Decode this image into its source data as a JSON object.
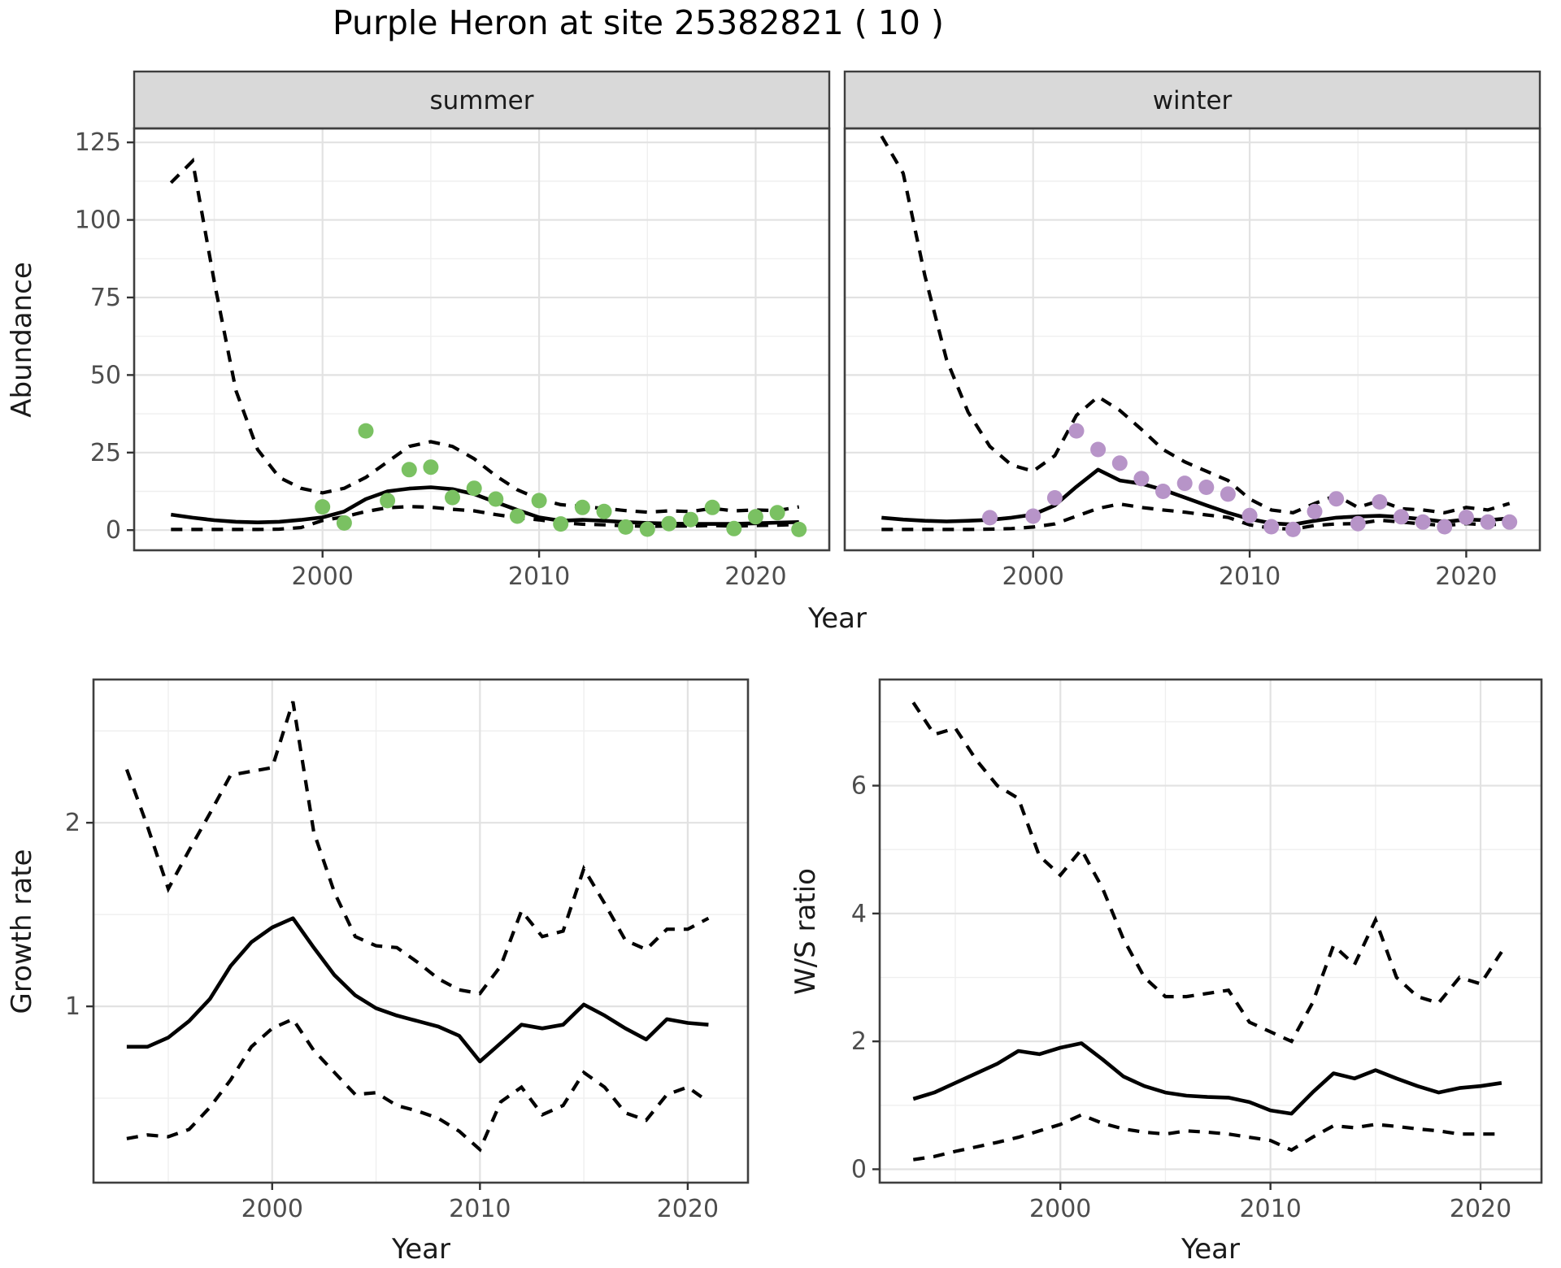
{
  "title": "Purple Heron at site 25382821 ( 10 )",
  "top_row": {
    "ylabel": "Abundance",
    "xlabel": "Year"
  },
  "bottom_left": {
    "ylabel": "Growth rate",
    "xlabel": "Year"
  },
  "bottom_right": {
    "ylabel": "W/S ratio",
    "xlabel": "Year"
  },
  "colors": {
    "summer_points": "#7ac162",
    "winter_points": "#b794c8",
    "line": "#000000",
    "grid_major": "#e2e2e2",
    "grid_minor": "#efefef",
    "panel_border": "#3f3f3f",
    "strip_bg": "#d9d9d9",
    "strip_text": "#1a1a1a",
    "tick_text": "#4d4d4d",
    "axis_title_text": "#1a1a1a"
  },
  "chart_data": [
    {
      "id": "abundance_summer",
      "type": "line",
      "facet_label": "summer",
      "xlabel": "Year",
      "ylabel": "Abundance",
      "x_domain": [
        1991.3,
        2023.4
      ],
      "y_domain": [
        -6.5,
        129.5
      ],
      "x_ticks": [
        2000,
        2010,
        2020
      ],
      "x_minor": [
        1995,
        2005,
        2015
      ],
      "y_ticks": [
        0,
        25,
        50,
        75,
        100,
        125
      ],
      "y_minor": [
        12.5,
        37.5,
        62.5,
        87.5,
        112.5
      ],
      "show_y_tick_labels": true,
      "grid": true,
      "legend": "none",
      "x": [
        1993,
        1994,
        1995,
        1996,
        1997,
        1998,
        1999,
        2000,
        2001,
        2002,
        2003,
        2004,
        2005,
        2006,
        2007,
        2008,
        2009,
        2010,
        2011,
        2012,
        2013,
        2014,
        2015,
        2016,
        2017,
        2018,
        2019,
        2020,
        2021,
        2022
      ],
      "series": [
        {
          "name": "upper_ci",
          "style": "dashed",
          "values": [
            112,
            119,
            80,
            45,
            26,
            17,
            13.5,
            12,
            13.5,
            17,
            22,
            27,
            28.5,
            27,
            23,
            17.5,
            13,
            10,
            8.2,
            7.6,
            7.0,
            6.3,
            5.8,
            6.2,
            6.0,
            7.0,
            6.2,
            6.5,
            6.3,
            7.5
          ]
        },
        {
          "name": "lower_ci",
          "style": "dashed",
          "values": [
            0.2,
            0.2,
            0.2,
            0.2,
            0.2,
            0.3,
            0.8,
            3.1,
            4.3,
            6.0,
            7.2,
            7.6,
            7.4,
            6.7,
            6.2,
            5.0,
            4.0,
            3.3,
            2.4,
            1.9,
            1.7,
            1.4,
            1.2,
            1.3,
            1.3,
            1.5,
            1.3,
            1.5,
            1.6,
            1.8
          ]
        },
        {
          "name": "fit",
          "style": "solid",
          "values": [
            5,
            4,
            3.2,
            2.7,
            2.5,
            2.7,
            3.3,
            4.1,
            6.0,
            10.0,
            12.5,
            13.4,
            13.8,
            13.2,
            11.6,
            9.0,
            6.5,
            4.1,
            3.0,
            3.3,
            3.0,
            2.6,
            2.3,
            2.1,
            2.0,
            2.0,
            2.0,
            2.2,
            2.4,
            2.6
          ]
        }
      ],
      "points": {
        "name": "summer_observations",
        "color_key": "summer_points",
        "years": [
          2000,
          2001,
          2002,
          2003,
          2004,
          2005,
          2006,
          2007,
          2008,
          2009,
          2010,
          2011,
          2012,
          2013,
          2014,
          2015,
          2016,
          2017,
          2018,
          2019,
          2020,
          2021,
          2022
        ],
        "values": [
          7.5,
          2.3,
          32,
          9.5,
          19.5,
          20.3,
          10.5,
          13.5,
          10,
          4.5,
          9.5,
          2,
          7.3,
          6,
          1,
          0.3,
          2.1,
          3.4,
          7.3,
          0.5,
          4.3,
          5.6,
          0.2
        ]
      }
    },
    {
      "id": "abundance_winter",
      "type": "line",
      "facet_label": "winter",
      "xlabel": "Year",
      "ylabel": "Abundance",
      "x_domain": [
        1991.3,
        2023.4
      ],
      "y_domain": [
        -6.5,
        129.5
      ],
      "x_ticks": [
        2000,
        2010,
        2020
      ],
      "x_minor": [
        1995,
        2005,
        2015
      ],
      "y_ticks": [
        0,
        25,
        50,
        75,
        100,
        125
      ],
      "y_minor": [
        12.5,
        37.5,
        62.5,
        87.5,
        112.5
      ],
      "show_y_tick_labels": false,
      "grid": true,
      "legend": "none",
      "x": [
        1993,
        1994,
        1995,
        1996,
        1997,
        1998,
        1999,
        2000,
        2001,
        2002,
        2003,
        2004,
        2005,
        2006,
        2007,
        2008,
        2009,
        2010,
        2011,
        2012,
        2013,
        2014,
        2015,
        2016,
        2017,
        2018,
        2019,
        2020,
        2021,
        2022
      ],
      "series": [
        {
          "name": "upper_ci",
          "style": "dashed",
          "values": [
            127,
            115,
            82,
            55,
            38,
            27,
            21,
            19,
            24,
            37,
            43,
            38.6,
            32.5,
            26,
            22,
            19,
            16,
            10,
            6.5,
            5.6,
            8.6,
            11.2,
            7.3,
            9.5,
            6.9,
            6.5,
            5.6,
            7.3,
            6.5,
            8.6
          ]
        },
        {
          "name": "lower_ci",
          "style": "dashed",
          "values": [
            0.2,
            0.2,
            0.2,
            0.2,
            0.2,
            0.3,
            0.5,
            1.0,
            2.0,
            4.5,
            7.0,
            8.4,
            7.3,
            6.5,
            5.8,
            4.9,
            4.1,
            1.7,
            0.6,
            0.3,
            1.5,
            2.0,
            2.1,
            3.2,
            2.6,
            2.0,
            1.5,
            2.1,
            1.7,
            2.1
          ]
        },
        {
          "name": "fit",
          "style": "solid",
          "values": [
            4,
            3.4,
            3,
            2.8,
            3,
            3.3,
            4,
            5,
            8,
            14,
            19.5,
            16,
            15,
            13,
            10.5,
            8,
            5.6,
            3.6,
            2.2,
            1.8,
            3,
            4,
            4.4,
            4.6,
            4.2,
            3.5,
            2.7,
            3.4,
            3.2,
            3.8
          ]
        }
      ],
      "points": {
        "name": "winter_observations",
        "color_key": "winter_points",
        "years": [
          1998,
          2000,
          2001,
          2002,
          2003,
          2004,
          2005,
          2006,
          2007,
          2008,
          2009,
          2010,
          2011,
          2012,
          2013,
          2014,
          2015,
          2016,
          2017,
          2018,
          2019,
          2020,
          2021,
          2022
        ],
        "values": [
          4,
          4.5,
          10.4,
          32,
          26,
          21.6,
          16.6,
          12.5,
          15.1,
          13.8,
          11.6,
          4.7,
          1.1,
          0.2,
          6,
          10.1,
          2.1,
          9.1,
          4.3,
          2.6,
          1.1,
          4.1,
          2.6,
          2.6
        ]
      }
    },
    {
      "id": "growth_rate",
      "type": "line",
      "facet_label": null,
      "xlabel": "Year",
      "ylabel": "Growth rate",
      "x_domain": [
        1991.4,
        2022.9
      ],
      "y_domain": [
        0.04,
        2.78
      ],
      "x_ticks": [
        2000,
        2010,
        2020
      ],
      "x_minor": [
        1995,
        2005,
        2015
      ],
      "y_ticks": [
        1,
        2
      ],
      "y_minor": [
        0.5,
        1.5,
        2.5
      ],
      "show_y_tick_labels": true,
      "grid": true,
      "legend": "none",
      "x": [
        1993,
        1994,
        1995,
        1996,
        1997,
        1998,
        1999,
        2000,
        2001,
        2002,
        2003,
        2004,
        2005,
        2006,
        2007,
        2008,
        2009,
        2010,
        2011,
        2012,
        2013,
        2014,
        2015,
        2016,
        2017,
        2018,
        2019,
        2020,
        2021
      ],
      "series": [
        {
          "name": "upper_ci",
          "style": "dashed",
          "values": [
            2.29,
            1.98,
            1.64,
            1.85,
            2.05,
            2.26,
            2.28,
            2.3,
            2.66,
            1.95,
            1.62,
            1.38,
            1.33,
            1.32,
            1.24,
            1.15,
            1.09,
            1.07,
            1.22,
            1.52,
            1.38,
            1.41,
            1.75,
            1.56,
            1.36,
            1.31,
            1.42,
            1.42,
            1.48
          ]
        },
        {
          "name": "lower_ci",
          "style": "dashed",
          "values": [
            0.28,
            0.3,
            0.29,
            0.33,
            0.45,
            0.6,
            0.78,
            0.88,
            0.93,
            0.76,
            0.64,
            0.52,
            0.53,
            0.46,
            0.43,
            0.39,
            0.32,
            0.22,
            0.48,
            0.56,
            0.41,
            0.46,
            0.64,
            0.56,
            0.42,
            0.38,
            0.52,
            0.56,
            0.48
          ]
        },
        {
          "name": "fit",
          "style": "solid",
          "values": [
            0.78,
            0.78,
            0.83,
            0.92,
            1.04,
            1.22,
            1.35,
            1.43,
            1.48,
            1.32,
            1.17,
            1.06,
            0.99,
            0.95,
            0.92,
            0.89,
            0.84,
            0.7,
            0.8,
            0.9,
            0.88,
            0.9,
            1.01,
            0.95,
            0.88,
            0.82,
            0.93,
            0.91,
            0.9
          ]
        }
      ],
      "points": null
    },
    {
      "id": "ws_ratio",
      "type": "line",
      "facet_label": null,
      "xlabel": "Year",
      "ylabel": "W/S ratio",
      "x_domain": [
        1991.4,
        2022.9
      ],
      "y_domain": [
        -0.21,
        7.66
      ],
      "x_ticks": [
        2000,
        2010,
        2020
      ],
      "x_minor": [
        1995,
        2005,
        2015
      ],
      "y_ticks": [
        0,
        2,
        4,
        6
      ],
      "y_minor": [
        1,
        3,
        5,
        7
      ],
      "show_y_tick_labels": true,
      "grid": true,
      "legend": "none",
      "x": [
        1993,
        1994,
        1995,
        1996,
        1997,
        1998,
        1999,
        2000,
        2001,
        2002,
        2003,
        2004,
        2005,
        2006,
        2007,
        2008,
        2009,
        2010,
        2011,
        2012,
        2013,
        2014,
        2015,
        2016,
        2017,
        2018,
        2019,
        2020,
        2021
      ],
      "series": [
        {
          "name": "upper_ci",
          "style": "dashed",
          "values": [
            7.3,
            6.8,
            6.9,
            6.4,
            6.0,
            5.8,
            4.9,
            4.6,
            5.0,
            4.4,
            3.6,
            3.0,
            2.7,
            2.7,
            2.75,
            2.8,
            2.3,
            2.15,
            2.0,
            2.6,
            3.5,
            3.2,
            3.9,
            3.0,
            2.7,
            2.6,
            3.0,
            2.9,
            3.4
          ]
        },
        {
          "name": "lower_ci",
          "style": "dashed",
          "values": [
            0.15,
            0.2,
            0.28,
            0.35,
            0.42,
            0.5,
            0.6,
            0.7,
            0.85,
            0.72,
            0.63,
            0.58,
            0.55,
            0.6,
            0.58,
            0.55,
            0.5,
            0.45,
            0.3,
            0.5,
            0.68,
            0.65,
            0.7,
            0.67,
            0.63,
            0.6,
            0.55,
            0.55,
            0.55
          ]
        },
        {
          "name": "fit",
          "style": "solid",
          "values": [
            1.1,
            1.2,
            1.35,
            1.5,
            1.65,
            1.85,
            1.8,
            1.9,
            1.97,
            1.72,
            1.45,
            1.3,
            1.2,
            1.15,
            1.13,
            1.12,
            1.05,
            0.92,
            0.87,
            1.2,
            1.5,
            1.42,
            1.55,
            1.42,
            1.3,
            1.2,
            1.27,
            1.3,
            1.35
          ]
        }
      ],
      "points": null
    }
  ]
}
